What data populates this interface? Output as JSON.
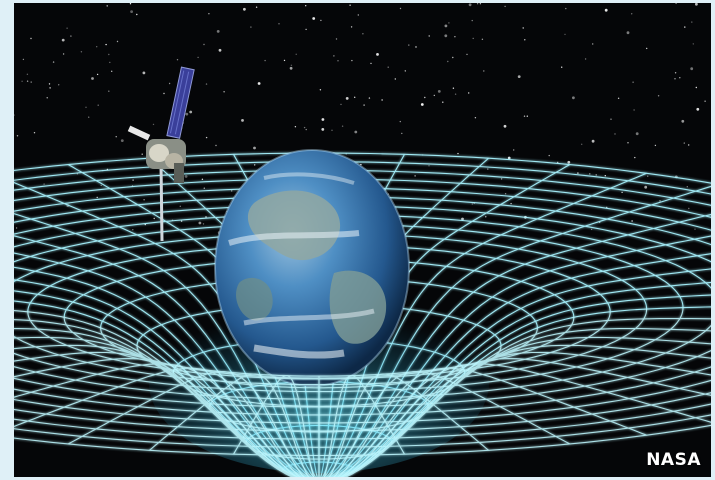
{
  "image": {
    "credit": "NASA",
    "colors": {
      "page_border": "#dff0f7",
      "space": "#050608",
      "grid": "#a8f4ff",
      "grid_glow": "#3bd8ff",
      "ocean": "#2f6fa8",
      "land": "#6f8f88"
    },
    "elements": [
      "starfield",
      "satellite",
      "earth",
      "spacetime-grid",
      "gravity-well"
    ]
  }
}
